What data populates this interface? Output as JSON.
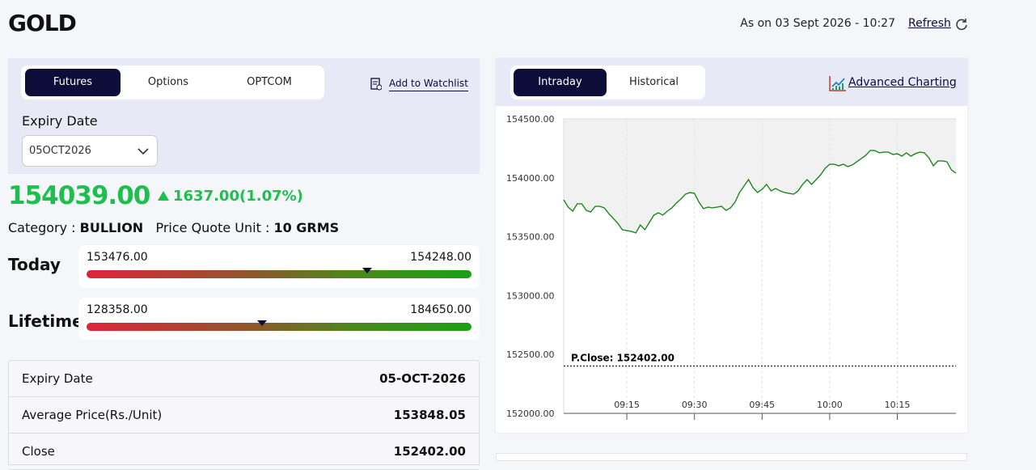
{
  "header": {
    "title": "GOLD",
    "as_on": "As on 03 Sept 2026 - 10:27",
    "refresh": "Refresh"
  },
  "left": {
    "tabs": [
      "Futures",
      "Options",
      "OPTCOM"
    ],
    "watchlist": "Add to Watchlist",
    "expiry_label": "Expiry Date",
    "expiry_value": "05OCT2026",
    "price": {
      "value": 154039,
      "label": "154039.00"
    },
    "change": "1637.00(1.07%)",
    "category_label": "Category :",
    "category": "BULLION",
    "unit_label": "Price Quote Unit :",
    "unit": "10 GRMS",
    "ranges": [
      {
        "label": "Today",
        "low": {
          "value": 153476,
          "label": "153476.00"
        },
        "high": {
          "value": 154248,
          "label": "154248.00"
        }
      },
      {
        "label": "Lifetime",
        "low": {
          "value": 128358,
          "label": "128358.00"
        },
        "high": {
          "value": 184650,
          "label": "184650.00"
        }
      }
    ]
  },
  "table": {
    "rows": [
      [
        "Expiry Date",
        "05-OCT-2026"
      ],
      [
        "Average Price(Rs./Unit)",
        "153848.05"
      ],
      [
        "Close",
        "152402.00"
      ]
    ]
  },
  "right": {
    "tabs": [
      "Intraday",
      "Historical"
    ],
    "advanced": "Advanced Charting"
  },
  "chart_data": {
    "type": "line",
    "color": "#1a8a1a",
    "categories": [
      null,
      null,
      null,
      null,
      null,
      null,
      null,
      null,
      null,
      null,
      null,
      null,
      null,
      null,
      "09:15",
      null,
      null,
      null,
      null,
      null,
      null,
      null,
      null,
      null,
      null,
      null,
      null,
      null,
      null,
      "09:30",
      null,
      null,
      null,
      null,
      null,
      null,
      null,
      null,
      null,
      null,
      null,
      null,
      null,
      null,
      "09:45",
      null,
      null,
      null,
      null,
      null,
      null,
      null,
      null,
      null,
      null,
      null,
      null,
      null,
      null,
      "10:00",
      null,
      null,
      null,
      null,
      null,
      null,
      null,
      null,
      null,
      null,
      null,
      null,
      null,
      null,
      "10:15",
      null,
      null,
      null,
      null,
      null,
      null,
      null,
      null,
      null,
      null,
      null,
      null,
      null
    ],
    "values": [
      153813,
      153751,
      153717,
      153779,
      153779,
      153724,
      153710,
      153758,
      153758,
      153745,
      153696,
      153655,
      153614,
      153559,
      153552,
      153545,
      153532,
      153600,
      153559,
      153621,
      153683,
      153703,
      153683,
      153717,
      153745,
      153786,
      153820,
      153861,
      153875,
      153868,
      153793,
      153738,
      153751,
      153745,
      153751,
      153758,
      153724,
      153745,
      153793,
      153875,
      153930,
      153985,
      153916,
      153875,
      153902,
      153944,
      153889,
      153909,
      153889,
      153875,
      153868,
      153861,
      153889,
      153944,
      153985,
      153944,
      153985,
      154026,
      154081,
      154115,
      154115,
      154102,
      154115,
      154095,
      154109,
      154136,
      154163,
      154191,
      154232,
      154232,
      154212,
      154218,
      154218,
      154198,
      154205,
      154184,
      154212,
      154184,
      154205,
      154218,
      154212,
      154170,
      154102,
      154143,
      154143,
      154136,
      154067,
      154039
    ],
    "ylim": [
      152000,
      154500
    ],
    "yticks": [
      {
        "value": 152000,
        "label": "152000.00"
      },
      {
        "value": 152500,
        "label": "152500.00"
      },
      {
        "value": 153000,
        "label": "153000.00"
      },
      {
        "value": 153500,
        "label": "153500.00"
      },
      {
        "value": 154000,
        "label": "154000.00"
      },
      {
        "value": 154500,
        "label": "154500.00"
      }
    ],
    "pclose": {
      "value": 152402,
      "label": "P.Close: 152402.00"
    },
    "grid": true
  }
}
